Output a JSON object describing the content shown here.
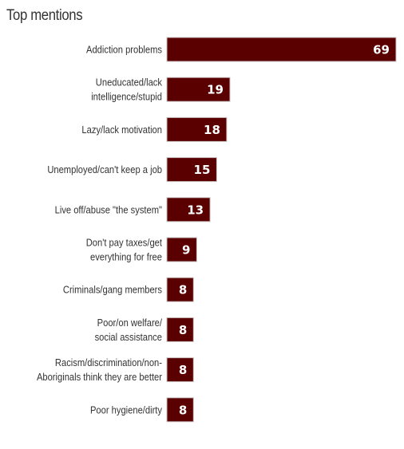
{
  "chart_data": {
    "type": "bar",
    "orientation": "horizontal",
    "title": "Top mentions",
    "categories": [
      "Addiction problems",
      "Uneducated/lack intelligence/stupid",
      "Lazy/lack motivation",
      "Unemployed/can't keep a job",
      "Live off/abuse \"the system\"",
      "Don't pay taxes/get everything for free",
      "Criminals/gang members",
      "Poor/on welfare/ social assistance",
      "Racism/discrimination/non- Aboriginals think they are better",
      "Poor hygiene/dirty"
    ],
    "category_lines": [
      [
        "Addiction problems"
      ],
      [
        "Uneducated/lack",
        "intelligence/stupid"
      ],
      [
        "Lazy/lack motivation"
      ],
      [
        "Unemployed/can't keep a job"
      ],
      [
        "Live off/abuse \"the system\""
      ],
      [
        "Don't pay taxes/get",
        "everything for free"
      ],
      [
        "Criminals/gang members"
      ],
      [
        "Poor/on welfare/",
        "social assistance"
      ],
      [
        "Racism/discrimination/non-",
        "Aboriginals think they are better"
      ],
      [
        "Poor hygiene/dirty"
      ]
    ],
    "values": [
      69,
      19,
      18,
      15,
      13,
      9,
      8,
      8,
      8,
      8
    ],
    "data_labels": [
      "69",
      "19",
      "18",
      "15",
      "13",
      "9",
      "8",
      "8",
      "8",
      "8"
    ],
    "bar_color": "#5a0000",
    "label_color": "#ffffff",
    "xlim": [
      0,
      69
    ],
    "grid": false,
    "legend": "none"
  }
}
